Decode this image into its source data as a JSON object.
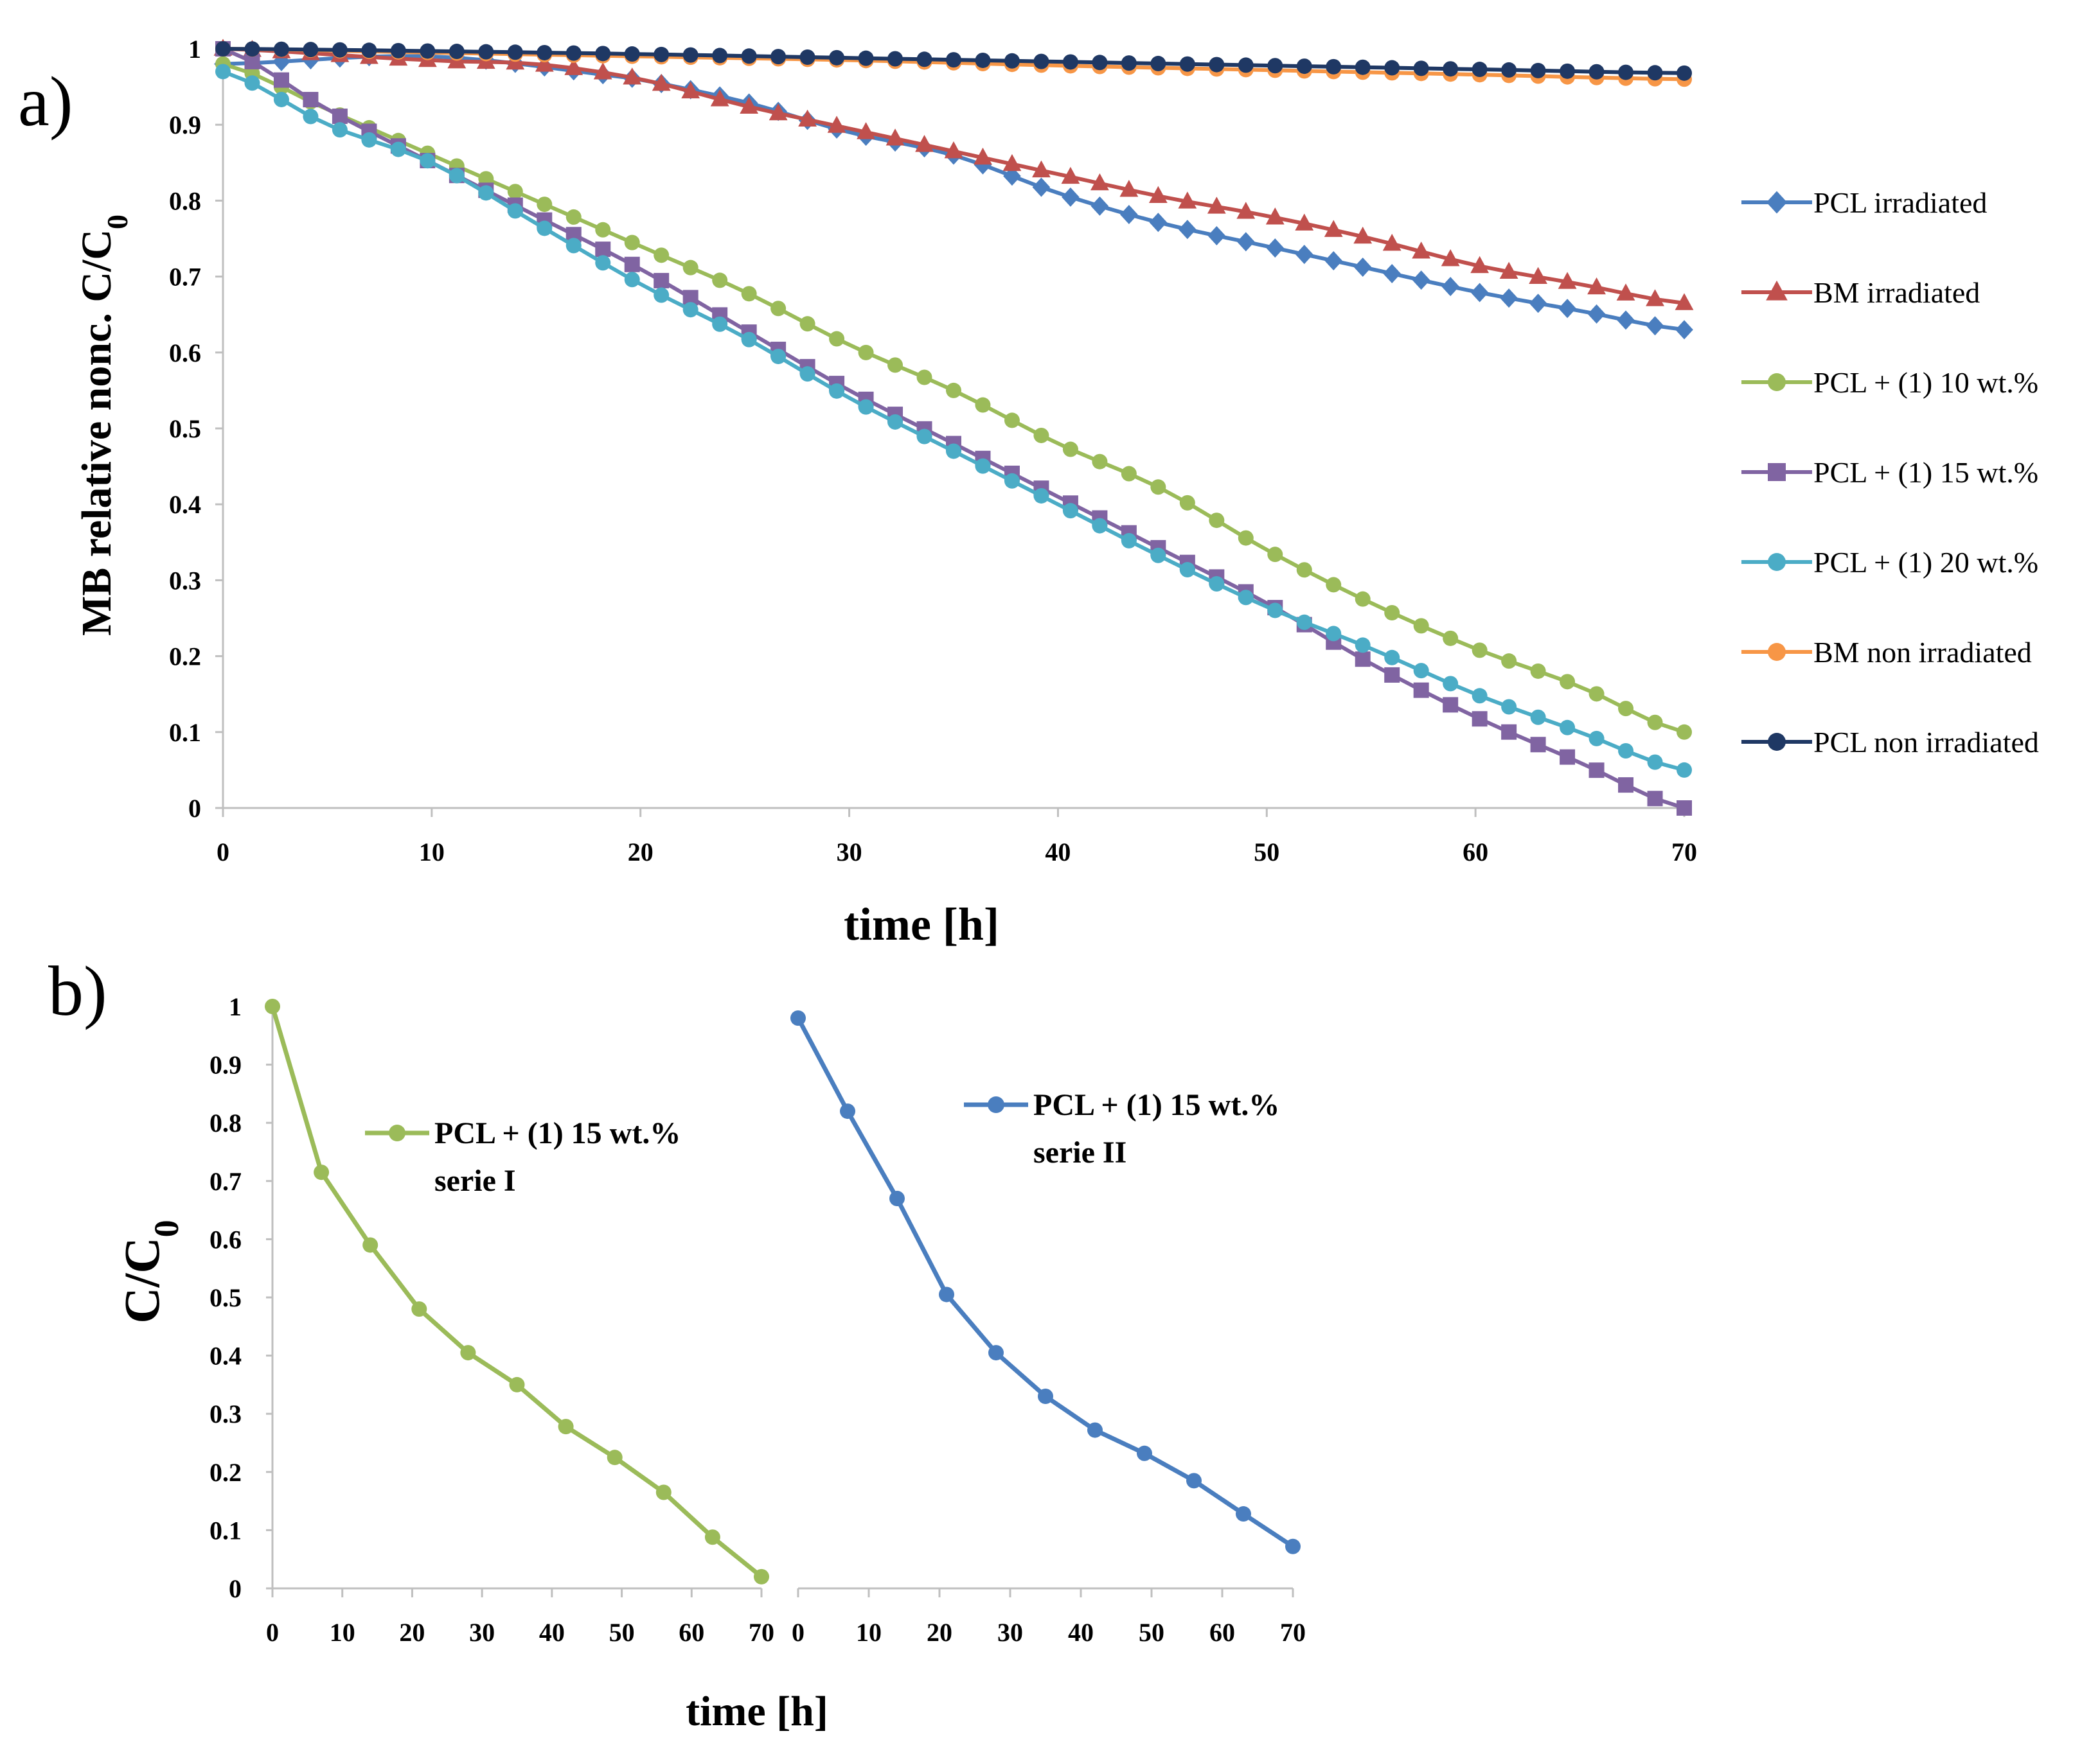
{
  "colors": {
    "pcl_irr": "#4a7ebf",
    "bm_irr": "#c0504d",
    "pcl10": "#9bbb59",
    "pcl15": "#8064a2",
    "pcl20": "#4bacc6",
    "bm_non": "#f79646",
    "pcl_non": "#1f3864",
    "axis": "#bfbfbf",
    "text": "#000000"
  },
  "chart_data": [
    {
      "id": "a",
      "type": "line",
      "panel_label": "a)",
      "ylabel": "MB relative nonc. C/C",
      "ylabel_sub": "0",
      "xlabel": "time [h]",
      "xlim": [
        0,
        70
      ],
      "ylim": [
        0,
        1
      ],
      "xticks": [
        "0",
        "10",
        "20",
        "30",
        "40",
        "50",
        "60",
        "70"
      ],
      "yticks": [
        "0",
        "0.1",
        "0.2",
        "0.3",
        "0.4",
        "0.5",
        "0.6",
        "0.7",
        "0.8",
        "0.9",
        "1"
      ],
      "legend_position": "right",
      "series": [
        {
          "name": "PCL irradiated",
          "color": "pcl_irr",
          "marker": "diamond",
          "points": [
            [
              0,
              0.98
            ],
            [
              10,
              0.99
            ],
            [
              20,
              0.96
            ],
            [
              25,
              0.93
            ],
            [
              30,
              0.89
            ],
            [
              35,
              0.86
            ],
            [
              40,
              0.81
            ],
            [
              45,
              0.77
            ],
            [
              50,
              0.74
            ],
            [
              55,
              0.71
            ],
            [
              60,
              0.68
            ],
            [
              65,
              0.655
            ],
            [
              70,
              0.63
            ]
          ]
        },
        {
          "name": "BM irradiated",
          "color": "bm_irr",
          "marker": "triangle",
          "points": [
            [
              0,
              1.0
            ],
            [
              10,
              0.985
            ],
            [
              15,
              0.98
            ],
            [
              20,
              0.96
            ],
            [
              25,
              0.925
            ],
            [
              30,
              0.895
            ],
            [
              35,
              0.865
            ],
            [
              40,
              0.835
            ],
            [
              45,
              0.805
            ],
            [
              50,
              0.78
            ],
            [
              55,
              0.75
            ],
            [
              60,
              0.715
            ],
            [
              65,
              0.69
            ],
            [
              70,
              0.665
            ]
          ]
        },
        {
          "name": "PCL + (1) 10 wt.%",
          "color": "pcl10",
          "marker": "circle",
          "points": [
            [
              0,
              0.98
            ],
            [
              5,
              0.92
            ],
            [
              10,
              0.86
            ],
            [
              15,
              0.8
            ],
            [
              20,
              0.74
            ],
            [
              25,
              0.68
            ],
            [
              30,
              0.61
            ],
            [
              35,
              0.55
            ],
            [
              40,
              0.48
            ],
            [
              45,
              0.42
            ],
            [
              50,
              0.34
            ],
            [
              55,
              0.27
            ],
            [
              60,
              0.21
            ],
            [
              65,
              0.16
            ],
            [
              70,
              0.1
            ]
          ]
        },
        {
          "name": "PCL + (1) 15 wt.%",
          "color": "pcl15",
          "marker": "square",
          "points": [
            [
              0,
              1.0
            ],
            [
              5,
              0.92
            ],
            [
              10,
              0.85
            ],
            [
              15,
              0.78
            ],
            [
              20,
              0.71
            ],
            [
              25,
              0.63
            ],
            [
              30,
              0.55
            ],
            [
              35,
              0.48
            ],
            [
              40,
              0.41
            ],
            [
              45,
              0.34
            ],
            [
              50,
              0.27
            ],
            [
              55,
              0.19
            ],
            [
              60,
              0.12
            ],
            [
              65,
              0.06
            ],
            [
              70,
              0.0
            ]
          ]
        },
        {
          "name": "PCL + (1) 20 wt.%",
          "color": "pcl20",
          "marker": "circle",
          "points": [
            [
              0,
              0.97
            ],
            [
              5,
              0.9
            ],
            [
              10,
              0.85
            ],
            [
              15,
              0.77
            ],
            [
              20,
              0.69
            ],
            [
              25,
              0.62
            ],
            [
              30,
              0.54
            ],
            [
              35,
              0.47
            ],
            [
              40,
              0.4
            ],
            [
              45,
              0.33
            ],
            [
              50,
              0.265
            ],
            [
              55,
              0.21
            ],
            [
              60,
              0.15
            ],
            [
              65,
              0.1
            ],
            [
              70,
              0.05
            ]
          ]
        },
        {
          "name": "BM non irradiated",
          "color": "bm_non",
          "marker": "circle",
          "points": [
            [
              0,
              1.0
            ],
            [
              10,
              0.995
            ],
            [
              20,
              0.99
            ],
            [
              30,
              0.985
            ],
            [
              40,
              0.978
            ],
            [
              50,
              0.972
            ],
            [
              60,
              0.966
            ],
            [
              70,
              0.96
            ]
          ]
        },
        {
          "name": "PCL non irradiated",
          "color": "pcl_non",
          "marker": "circle",
          "points": [
            [
              0,
              1.0
            ],
            [
              10,
              0.997
            ],
            [
              20,
              0.993
            ],
            [
              30,
              0.988
            ],
            [
              40,
              0.983
            ],
            [
              50,
              0.978
            ],
            [
              60,
              0.973
            ],
            [
              70,
              0.968
            ]
          ]
        }
      ]
    },
    {
      "id": "b",
      "type": "line",
      "panel_label": "b)",
      "ylabel": "C/C",
      "ylabel_sub": "0",
      "xlabel": "time [h]",
      "ylim": [
        0,
        1
      ],
      "yticks": [
        "0",
        "0.1",
        "0.2",
        "0.3",
        "0.4",
        "0.5",
        "0.6",
        "0.7",
        "0.8",
        "0.9",
        "1"
      ],
      "xticks": [
        "0",
        "10",
        "20",
        "30",
        "40",
        "50",
        "60",
        "70"
      ],
      "panels": [
        {
          "xlim": [
            0,
            70
          ],
          "legend_position": "upper-middle",
          "series": [
            {
              "name": "PCL + (1) 15 wt.%",
              "name2": "serie I",
              "color": "pcl10",
              "marker": "circle",
              "points": [
                [
                  0,
                  1.0
                ],
                [
                  7,
                  0.715
                ],
                [
                  14,
                  0.59
                ],
                [
                  21,
                  0.48
                ],
                [
                  28,
                  0.405
                ],
                [
                  35,
                  0.35
                ],
                [
                  42,
                  0.278
                ],
                [
                  49,
                  0.225
                ],
                [
                  56,
                  0.165
                ],
                [
                  63,
                  0.088
                ],
                [
                  70,
                  0.02
                ]
              ]
            }
          ]
        },
        {
          "xlim": [
            0,
            70
          ],
          "legend_position": "top-right",
          "series": [
            {
              "name": "PCL + (1) 15 wt.%",
              "name2": "serie II",
              "color": "pcl_irr",
              "marker": "circle",
              "points": [
                [
                  0,
                  0.98
                ],
                [
                  7,
                  0.82
                ],
                [
                  14,
                  0.67
                ],
                [
                  21,
                  0.505
                ],
                [
                  28,
                  0.405
                ],
                [
                  35,
                  0.33
                ],
                [
                  42,
                  0.272
                ],
                [
                  49,
                  0.232
                ],
                [
                  56,
                  0.185
                ],
                [
                  63,
                  0.128
                ],
                [
                  70,
                  0.072
                ]
              ]
            }
          ]
        }
      ]
    }
  ]
}
